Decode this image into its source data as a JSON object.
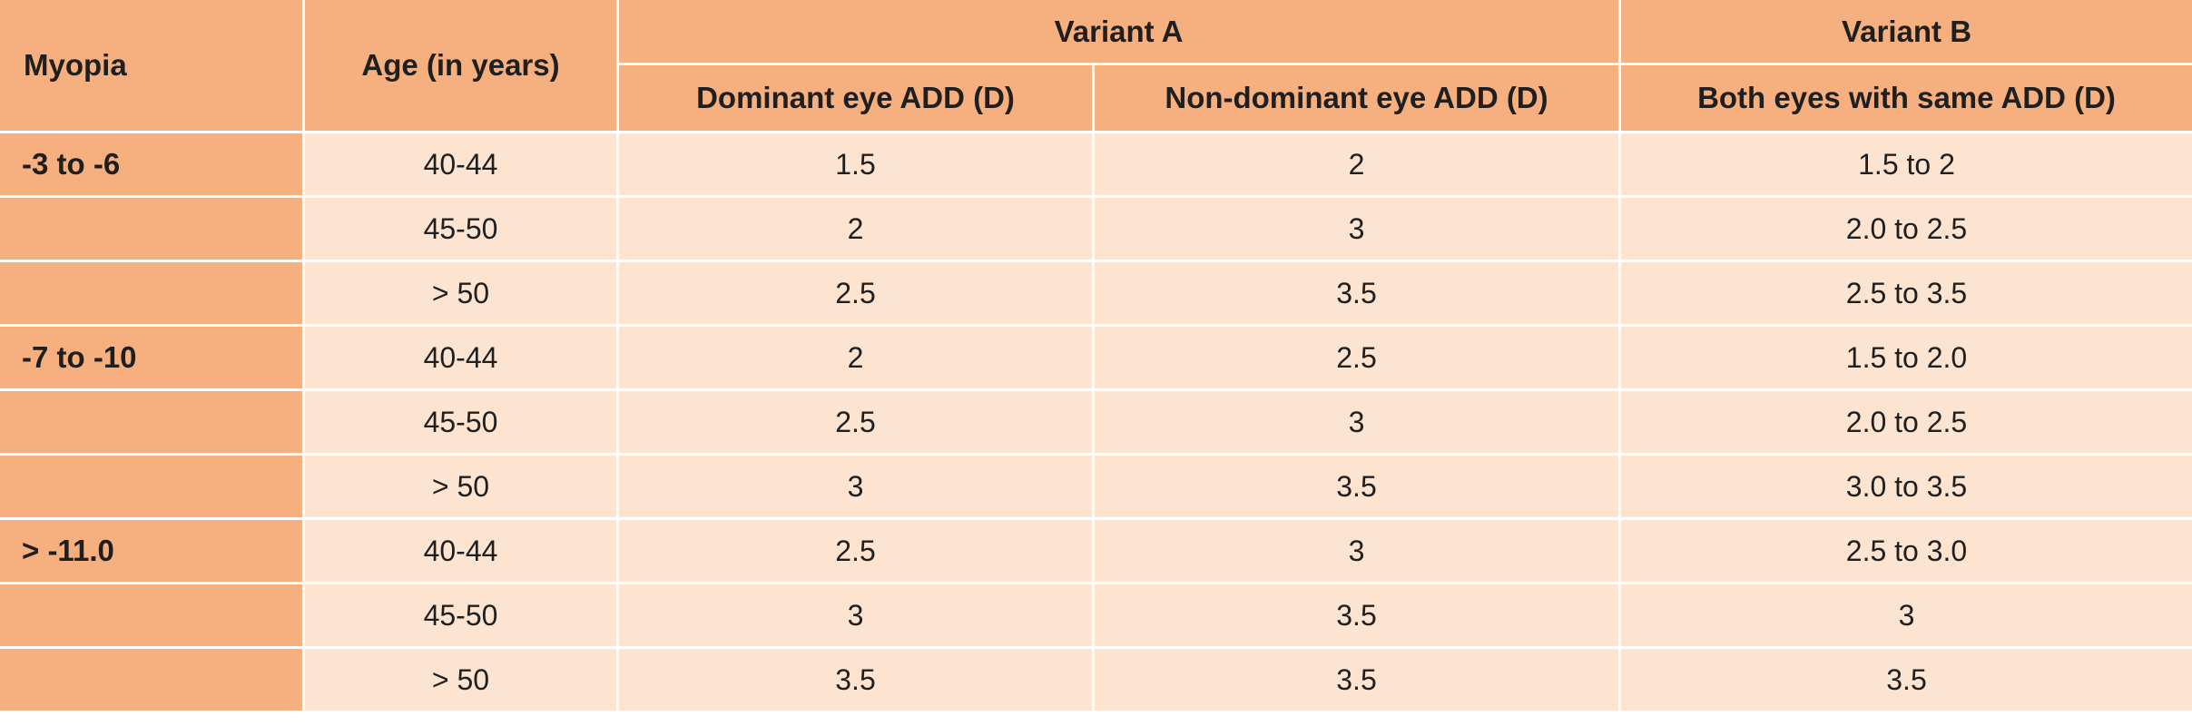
{
  "table": {
    "headers": {
      "myopia": "Myopia",
      "age": "Age (in years)",
      "variant_a": "Variant A",
      "variant_b": "Variant B",
      "dominant": "Dominant eye ADD (D)",
      "non_dominant": "Non-dominant eye ADD (D)",
      "both_eyes": "Both eyes with same ADD (D)"
    },
    "rows": [
      {
        "myopia": "-3 to -6",
        "age": "40-44",
        "dominant": "1.5",
        "non_dominant": "2",
        "both": "1.5 to 2"
      },
      {
        "myopia": "",
        "age": "45-50",
        "dominant": "2",
        "non_dominant": "3",
        "both": "2.0 to 2.5"
      },
      {
        "myopia": "",
        "age": "> 50",
        "dominant": "2.5",
        "non_dominant": "3.5",
        "both": "2.5 to 3.5"
      },
      {
        "myopia": "-7 to -10",
        "age": "40-44",
        "dominant": "2",
        "non_dominant": "2.5",
        "both": "1.5 to 2.0"
      },
      {
        "myopia": "",
        "age": "45-50",
        "dominant": "2.5",
        "non_dominant": "3",
        "both": "2.0 to 2.5"
      },
      {
        "myopia": "",
        "age": "> 50",
        "dominant": "3",
        "non_dominant": "3.5",
        "both": "3.0 to 3.5"
      },
      {
        "myopia": "> -11.0",
        "age": "40-44",
        "dominant": "2.5",
        "non_dominant": "3",
        "both": "2.5 to 3.0"
      },
      {
        "myopia": "",
        "age": "45-50",
        "dominant": "3",
        "non_dominant": "3.5",
        "both": "3"
      },
      {
        "myopia": "",
        "age": "> 50",
        "dominant": "3.5",
        "non_dominant": "3.5",
        "both": "3.5"
      }
    ]
  }
}
